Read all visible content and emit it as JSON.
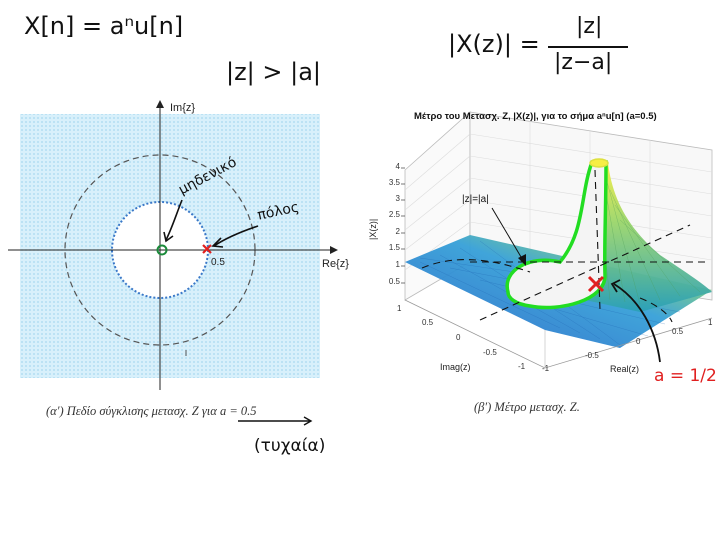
{
  "handwriting": {
    "signal": "X[n] = aⁿu[n]",
    "roc": "|z| > |a|",
    "magnitude_lhs": "|X(z)| =",
    "magnitude_num": "|z|",
    "magnitude_den": "|z−a|",
    "zero_note": "μηδενικό",
    "pole_note": "πόλος",
    "random_note": "(τυχαία)",
    "a_value": "a = 1/2"
  },
  "left_plot": {
    "y_axis_label": "Im{z}",
    "x_axis_label": "Re{z}",
    "pole_value_label": "0.5",
    "caption": "(α′) Πεδίο σύγκλισης μετασχ. Z για a = 0.5",
    "colors": {
      "roc_fill": "#cfeaf8",
      "zero": "#1a8a3a",
      "pole": "#e02020"
    }
  },
  "right_plot": {
    "title": "Μέτρο του Μετασχ. Z, |X(z)|, για το σήμα aⁿu[n] (a=0.5)",
    "z_label": "|X(z)|",
    "z_ticks": [
      "4",
      "3.5",
      "3",
      "2.5",
      "2",
      "1.5",
      "1",
      "0.5"
    ],
    "imag_label": "Imag(z)",
    "real_label": "Real(z)",
    "imag_ticks": [
      "1",
      "0.5",
      "0",
      "-0.5",
      "-1"
    ],
    "real_ticks": [
      "-1",
      "-0.5",
      "0",
      "0.5",
      "1"
    ],
    "annotation": "|z|=|a|",
    "caption": "(β′) Μέτρο μετασχ. Z.",
    "colors": {
      "surface_low": "#2a7fd0",
      "surface_high": "#f5e83a",
      "ring": "#22dd22",
      "pole": "#e02020"
    }
  }
}
